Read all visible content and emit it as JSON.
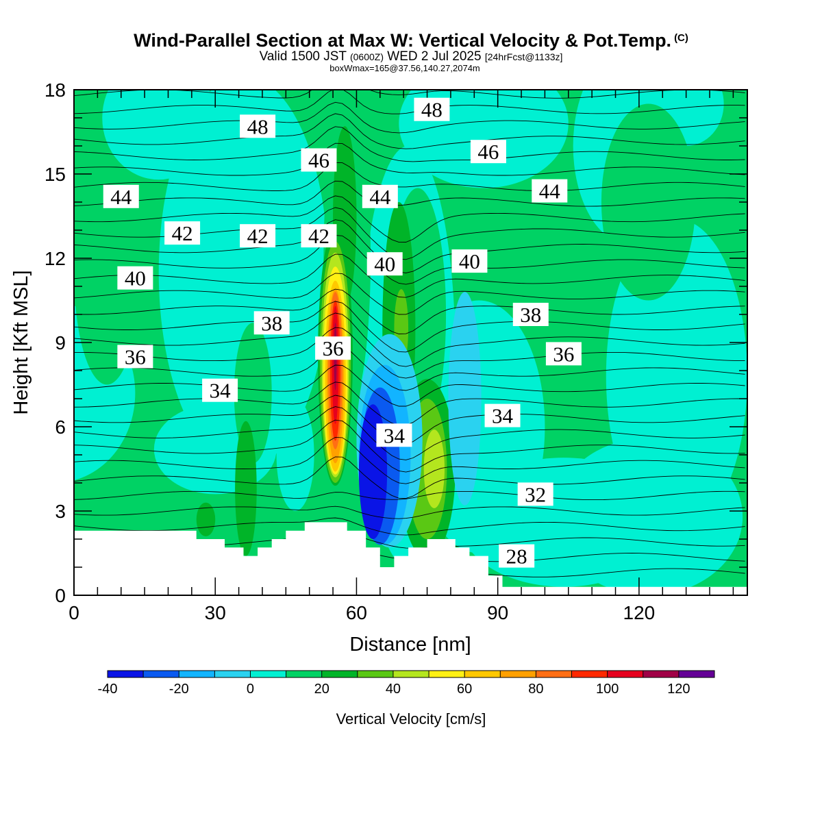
{
  "header": {
    "title": "Wind-Parallel Section at Max W: Vertical Velocity & Pot.Temp.",
    "copyright": "(C)",
    "valid_prefix": "Valid 1500 JST",
    "valid_utc": "(0600Z)",
    "valid_date": "WED 2 Jul 2025",
    "forecast": "[24hrFcst@1133z]",
    "box_info": "boxWmax=165@37.56,140.27,2074m"
  },
  "chart_data": {
    "type": "heatmap",
    "xlabel": "Distance [nm]",
    "ylabel": "Height [Kft MSL]",
    "xlim": [
      0,
      143
    ],
    "ylim": [
      0,
      18
    ],
    "x_ticks": [
      0,
      30,
      60,
      90,
      120
    ],
    "y_ticks": [
      0,
      3,
      6,
      9,
      12,
      15,
      18
    ],
    "colorbar": {
      "title": "Vertical Velocity [cm/s]",
      "levels": [
        -40,
        -30,
        -20,
        -10,
        0,
        10,
        20,
        30,
        40,
        50,
        60,
        70,
        80,
        90,
        100,
        110,
        120
      ],
      "tick_labels": [
        "-40",
        "-20",
        "0",
        "20",
        "40",
        "60",
        "80",
        "100",
        "120"
      ],
      "colors": [
        "#0a14e6",
        "#0a5af0",
        "#12b4ff",
        "#2ad2f0",
        "#00f0d2",
        "#00d264",
        "#00b428",
        "#5ac814",
        "#b4e61e",
        "#fff014",
        "#ffc800",
        "#ffa000",
        "#ff6e14",
        "#ff2800",
        "#e6001e",
        "#a00046",
        "#640096"
      ]
    },
    "theta_labels": [
      {
        "value": "48",
        "x": 39,
        "y": 16.7
      },
      {
        "value": "48",
        "x": 76,
        "y": 17.3
      },
      {
        "value": "46",
        "x": 52,
        "y": 15.5
      },
      {
        "value": "46",
        "x": 88,
        "y": 15.8
      },
      {
        "value": "44",
        "x": 10,
        "y": 14.2
      },
      {
        "value": "44",
        "x": 65,
        "y": 14.2
      },
      {
        "value": "44",
        "x": 101,
        "y": 14.4
      },
      {
        "value": "42",
        "x": 23,
        "y": 12.9
      },
      {
        "value": "42",
        "x": 39,
        "y": 12.8
      },
      {
        "value": "42",
        "x": 52,
        "y": 12.8
      },
      {
        "value": "40",
        "x": 13,
        "y": 11.3
      },
      {
        "value": "40",
        "x": 66,
        "y": 11.8
      },
      {
        "value": "40",
        "x": 84,
        "y": 11.9
      },
      {
        "value": "38",
        "x": 42,
        "y": 9.7
      },
      {
        "value": "38",
        "x": 97,
        "y": 10.0
      },
      {
        "value": "36",
        "x": 13,
        "y": 8.5
      },
      {
        "value": "36",
        "x": 55,
        "y": 8.8
      },
      {
        "value": "36",
        "x": 104,
        "y": 8.6
      },
      {
        "value": "34",
        "x": 31,
        "y": 7.3
      },
      {
        "value": "34",
        "x": 68,
        "y": 5.7
      },
      {
        "value": "34",
        "x": 91,
        "y": 6.4
      },
      {
        "value": "32",
        "x": 98,
        "y": 3.6
      },
      {
        "value": "28",
        "x": 94,
        "y": 1.4
      }
    ],
    "terrain": [
      [
        0,
        2.3
      ],
      [
        26,
        2.3
      ],
      [
        26,
        2.0
      ],
      [
        32,
        2.0
      ],
      [
        32,
        1.7
      ],
      [
        36,
        1.7
      ],
      [
        36,
        1.4
      ],
      [
        39,
        1.4
      ],
      [
        39,
        1.7
      ],
      [
        42,
        1.7
      ],
      [
        42,
        2.0
      ],
      [
        45,
        2.0
      ],
      [
        45,
        2.3
      ],
      [
        49,
        2.3
      ],
      [
        49,
        2.6
      ],
      [
        58,
        2.6
      ],
      [
        58,
        2.3
      ],
      [
        62,
        2.3
      ],
      [
        62,
        1.7
      ],
      [
        65,
        1.7
      ],
      [
        65,
        1.0
      ],
      [
        68,
        1.0
      ],
      [
        68,
        1.4
      ],
      [
        71,
        1.4
      ],
      [
        71,
        1.7
      ],
      [
        75,
        1.7
      ],
      [
        75,
        2.0
      ],
      [
        81,
        2.0
      ],
      [
        81,
        1.7
      ],
      [
        84,
        1.7
      ],
      [
        84,
        1.4
      ],
      [
        88,
        1.4
      ],
      [
        88,
        0.7
      ],
      [
        91,
        0.7
      ],
      [
        91,
        0.3
      ],
      [
        143,
        0.3
      ]
    ]
  }
}
